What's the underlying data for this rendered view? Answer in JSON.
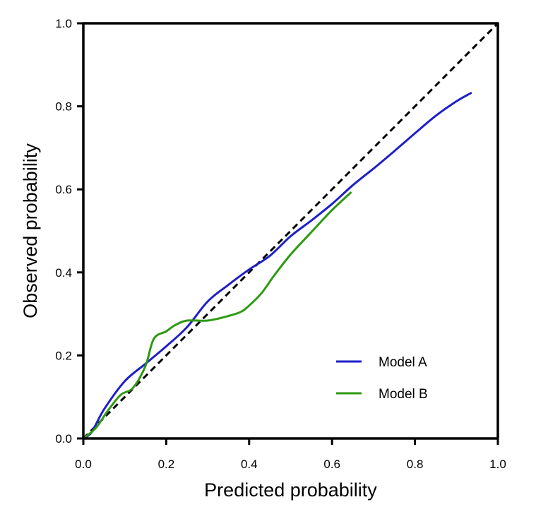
{
  "chart_data": {
    "type": "line",
    "title": "",
    "xlabel": "Predicted probability",
    "ylabel": "Observed probability",
    "xlim": [
      0,
      1
    ],
    "ylim": [
      0,
      1
    ],
    "xticks": [
      0.0,
      0.2,
      0.4,
      0.6,
      0.8,
      1.0
    ],
    "yticks": [
      0.0,
      0.2,
      0.4,
      0.6,
      0.8,
      1.0
    ],
    "xtick_labels": [
      "0.0",
      "0.2",
      "0.4",
      "0.6",
      "0.8",
      "1.0"
    ],
    "ytick_labels": [
      "0.0",
      "0.2",
      "0.4",
      "0.6",
      "0.8",
      "1.0"
    ],
    "grid": false,
    "legend_position": "lower-right",
    "reference_line": {
      "style": "dashed",
      "color": "#000000",
      "points": [
        [
          0,
          0
        ],
        [
          1,
          1
        ]
      ]
    },
    "series": [
      {
        "name": "Model A",
        "color": "#1f1fc8",
        "points": [
          [
            0.0,
            0.0
          ],
          [
            0.02,
            0.015
          ],
          [
            0.05,
            0.07
          ],
          [
            0.1,
            0.138
          ],
          [
            0.15,
            0.18
          ],
          [
            0.2,
            0.222
          ],
          [
            0.25,
            0.268
          ],
          [
            0.3,
            0.33
          ],
          [
            0.35,
            0.37
          ],
          [
            0.4,
            0.407
          ],
          [
            0.45,
            0.44
          ],
          [
            0.5,
            0.487
          ],
          [
            0.55,
            0.525
          ],
          [
            0.6,
            0.565
          ],
          [
            0.65,
            0.61
          ],
          [
            0.7,
            0.65
          ],
          [
            0.75,
            0.692
          ],
          [
            0.8,
            0.735
          ],
          [
            0.85,
            0.777
          ],
          [
            0.9,
            0.812
          ],
          [
            0.935,
            0.832
          ]
        ]
      },
      {
        "name": "Model B",
        "color": "#2e9a12",
        "points": [
          [
            0.0,
            0.0
          ],
          [
            0.03,
            0.025
          ],
          [
            0.06,
            0.068
          ],
          [
            0.09,
            0.105
          ],
          [
            0.12,
            0.122
          ],
          [
            0.15,
            0.175
          ],
          [
            0.17,
            0.24
          ],
          [
            0.2,
            0.258
          ],
          [
            0.22,
            0.272
          ],
          [
            0.25,
            0.284
          ],
          [
            0.3,
            0.284
          ],
          [
            0.35,
            0.295
          ],
          [
            0.38,
            0.305
          ],
          [
            0.4,
            0.32
          ],
          [
            0.43,
            0.35
          ],
          [
            0.46,
            0.392
          ],
          [
            0.5,
            0.443
          ],
          [
            0.55,
            0.497
          ],
          [
            0.6,
            0.55
          ],
          [
            0.645,
            0.592
          ]
        ]
      }
    ]
  }
}
